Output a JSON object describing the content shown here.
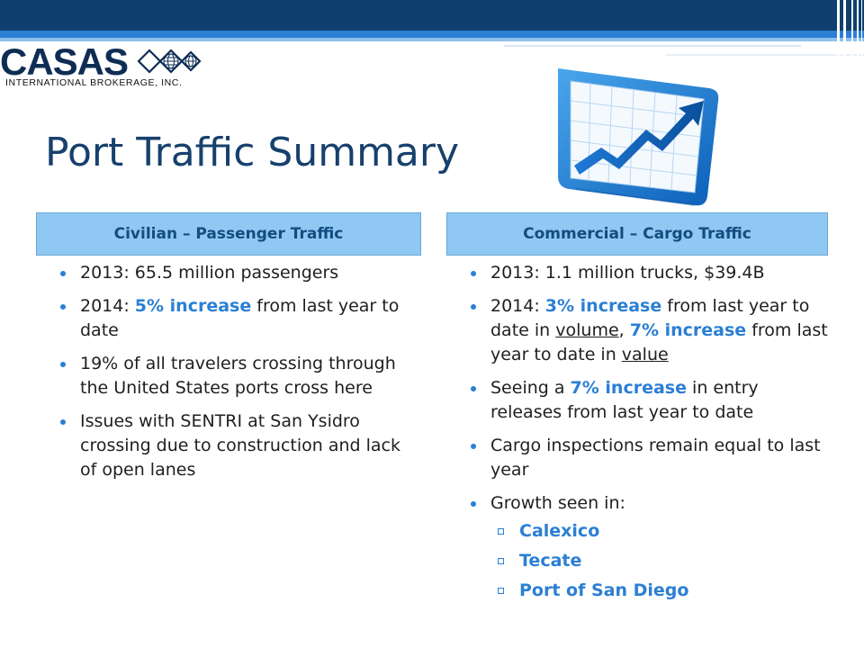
{
  "logo": {
    "wordmark": "CASAS",
    "subtitle": "INTERNATIONAL BROKERAGE, INC."
  },
  "title": "Port Traffic Summary",
  "colors": {
    "accent": "#2b7fd4",
    "header_bg": "#8fc8f2",
    "title": "#17406d",
    "banner": "#0e3f6e"
  },
  "icons": [
    "rising-line-chart-icon",
    "globe-icon"
  ],
  "left": {
    "header": "Civilian – Passenger Traffic",
    "bullets": [
      {
        "text": "2013: 65.5 million passengers"
      },
      {
        "pre": "2014: ",
        "hl": "5% increase",
        "post": " from last year to date"
      },
      {
        "text": "19% of all travelers crossing through the United States ports cross here"
      },
      {
        "text": "Issues with SENTRI at San Ysidro crossing due to construction and lack of open lanes"
      }
    ]
  },
  "right": {
    "header": "Commercial – Cargo Traffic",
    "bullets": [
      {
        "text": "2013: 1.1 million trucks, $39.4B"
      },
      {
        "pre": "2014:  ",
        "hl1": "3% increase",
        "mid1": " from last year to date in ",
        "u1": "volume",
        "mid2": ", ",
        "hl2": "7% increase",
        "mid3": " from last year to date in ",
        "u2": "value"
      },
      {
        "pre": "Seeing a ",
        "hl": "7% increase",
        "post": " in entry releases from last year to date"
      },
      {
        "text": "Cargo inspections remain equal to last year"
      },
      {
        "text": "Growth seen in:"
      }
    ],
    "growth_locations": [
      "Calexico",
      "Tecate",
      "Port of San Diego"
    ]
  }
}
